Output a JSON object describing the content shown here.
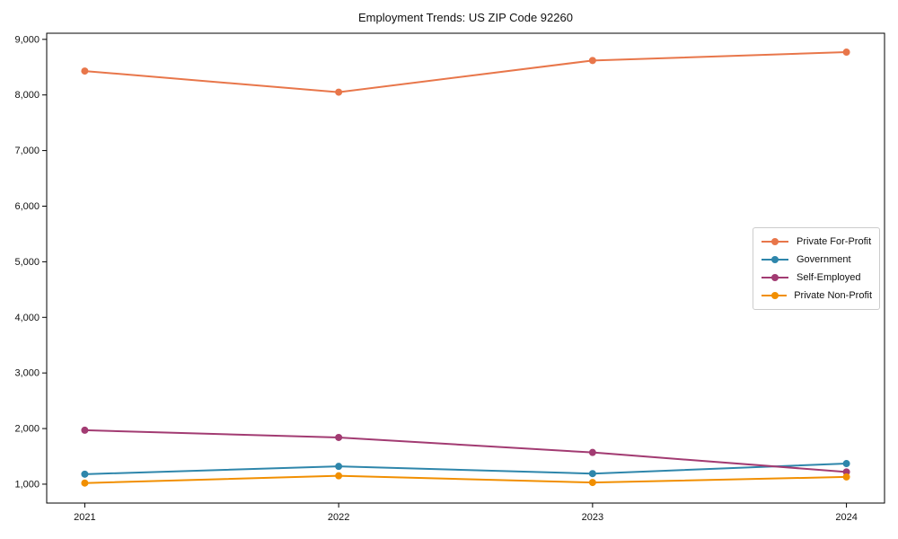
{
  "chart_data": {
    "type": "line",
    "title": "Employment Trends: US ZIP Code 92260",
    "xlabel": "",
    "ylabel": "",
    "x": [
      2021,
      2022,
      2023,
      2024
    ],
    "xtick_labels": [
      "2021",
      "2022",
      "2023",
      "2024"
    ],
    "yticks": [
      1000,
      2000,
      3000,
      4000,
      5000,
      6000,
      7000,
      8000,
      9000
    ],
    "ytick_labels": [
      "1,000",
      "2,000",
      "3,000",
      "4,000",
      "5,000",
      "6,000",
      "7,000",
      "8,000",
      "9,000"
    ],
    "xlim": [
      2020.85,
      2024.15
    ],
    "ylim": [
      660,
      9110
    ],
    "grid": false,
    "legend_position": "center right",
    "series": [
      {
        "name": "Private For-Profit",
        "color": "#E8764A",
        "values": [
          8430,
          8050,
          8620,
          8770
        ]
      },
      {
        "name": "Government",
        "color": "#2E86AB",
        "values": [
          1180,
          1320,
          1190,
          1370
        ]
      },
      {
        "name": "Self-Employed",
        "color": "#A23B72",
        "values": [
          1970,
          1840,
          1570,
          1220
        ]
      },
      {
        "name": "Private Non-Profit",
        "color": "#F18F01",
        "values": [
          1020,
          1150,
          1030,
          1130
        ]
      }
    ]
  }
}
